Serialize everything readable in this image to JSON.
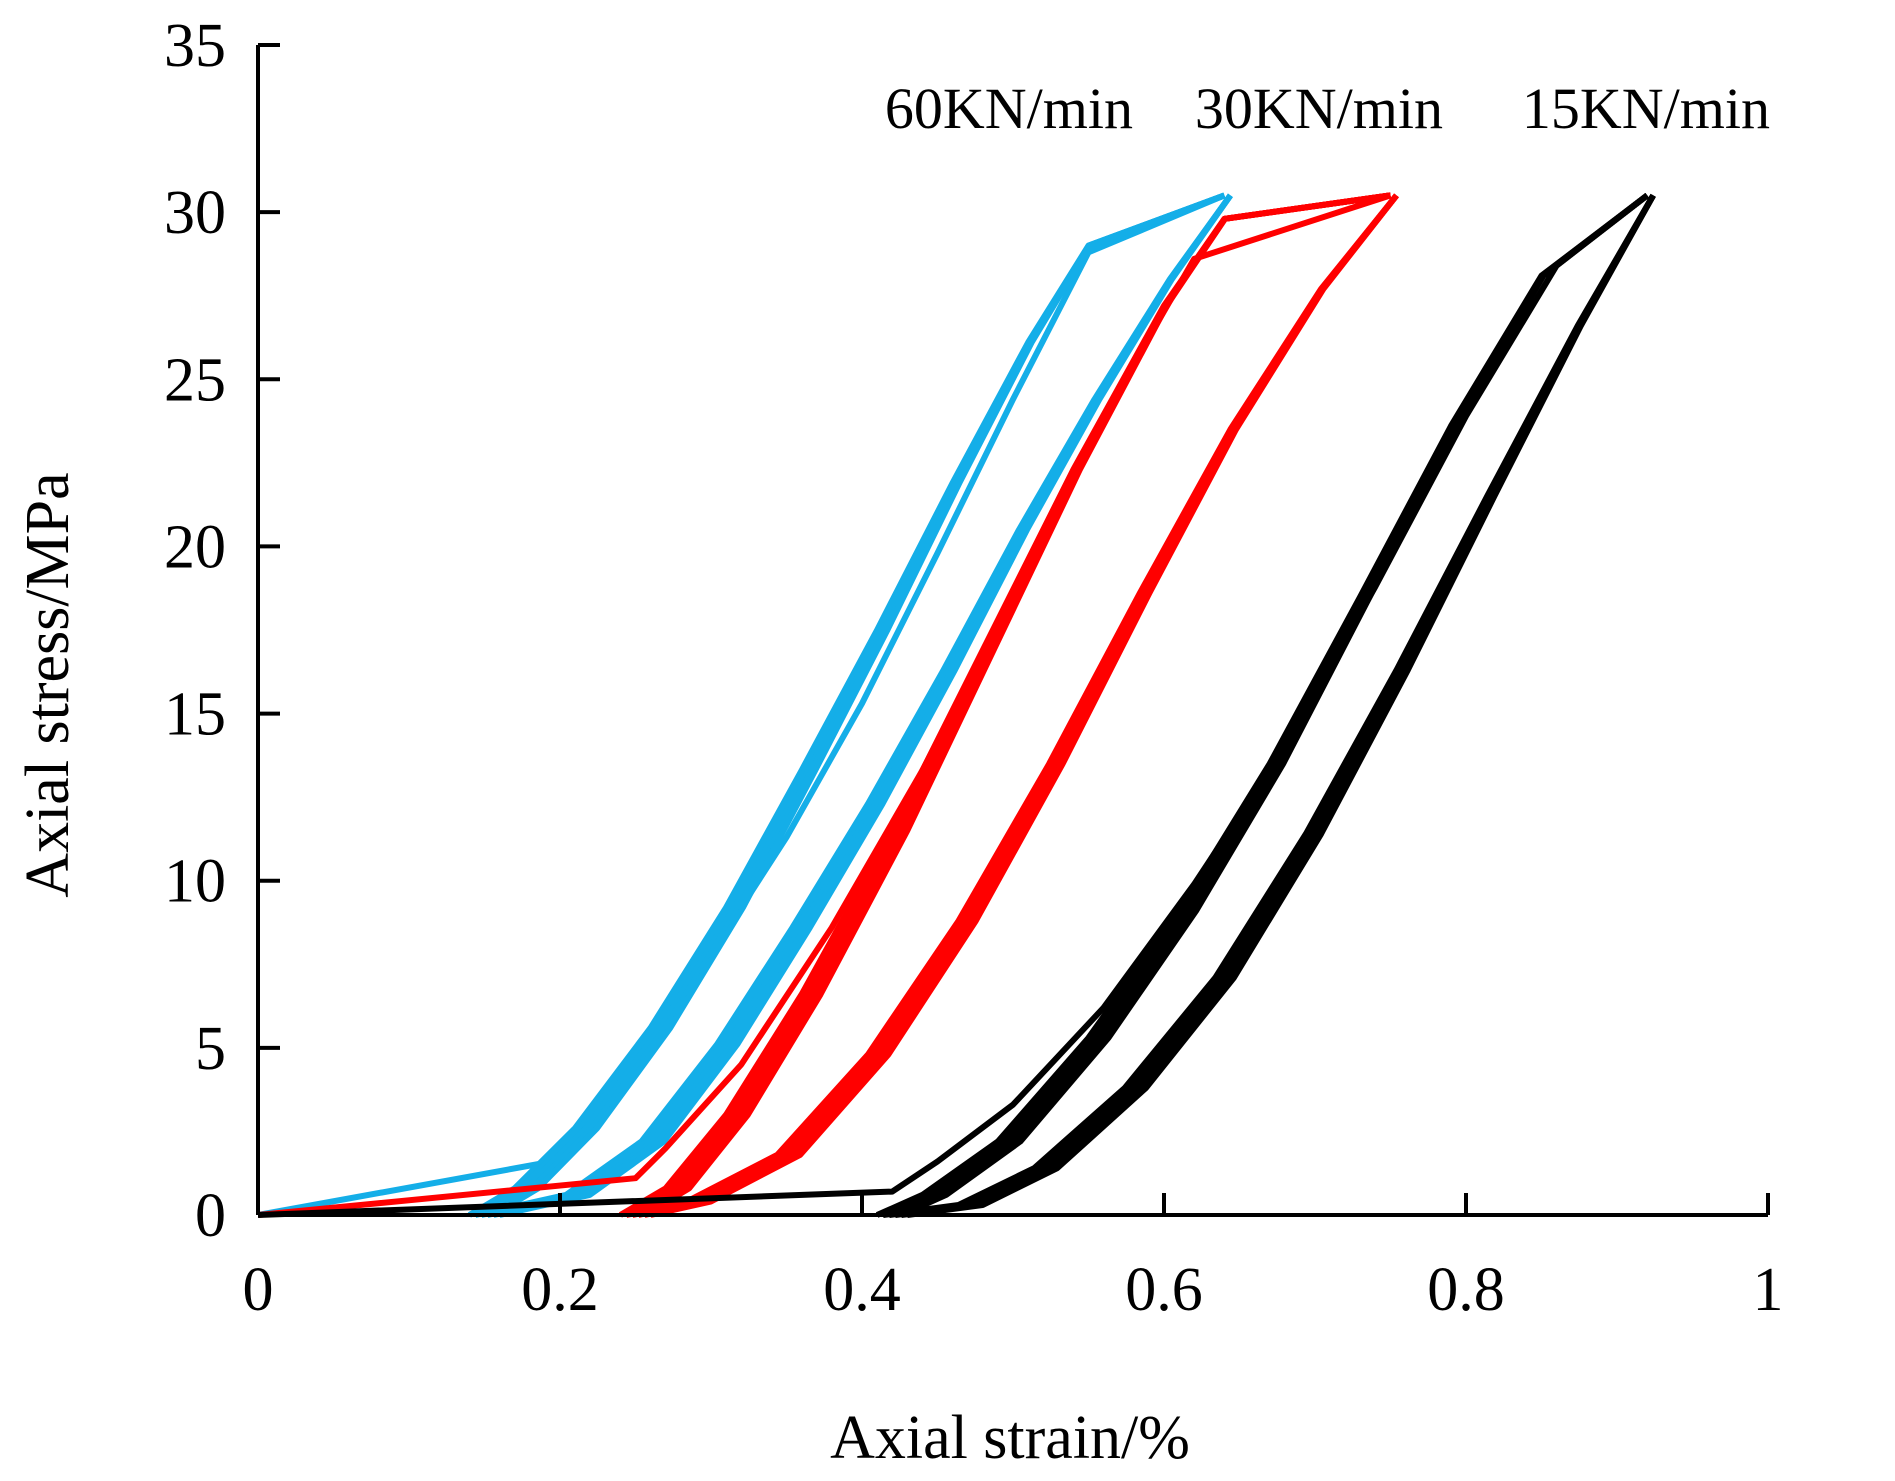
{
  "chart_data": {
    "type": "line",
    "title": "",
    "xlabel": "Axial strain/%",
    "ylabel": "Axial stress/MPa",
    "xlim": [
      0,
      1
    ],
    "ylim": [
      0,
      35
    ],
    "x_ticks": [
      0,
      0.2,
      0.4,
      0.6,
      0.8,
      1
    ],
    "x_tick_labels": [
      "0",
      "0.2",
      "0.4",
      "0.6",
      "0.8",
      "1"
    ],
    "y_ticks": [
      0,
      5,
      10,
      15,
      20,
      25,
      30,
      35
    ],
    "y_tick_labels": [
      "0",
      "5",
      "10",
      "15",
      "20",
      "25",
      "30",
      "35"
    ],
    "grid": false,
    "legend_placement": "top-right, labels above curve ends",
    "series": [
      {
        "name": "60KN/min",
        "color": "#14aee8",
        "initial_loading": [
          [
            0,
            0
          ],
          [
            0.195,
            1.6
          ],
          [
            0.21,
            2.5
          ],
          [
            0.26,
            5
          ],
          [
            0.3,
            7.8
          ],
          [
            0.35,
            11.3
          ],
          [
            0.4,
            15.3
          ],
          [
            0.45,
            19.8
          ],
          [
            0.5,
            24.4
          ],
          [
            0.55,
            28.8
          ],
          [
            0.64,
            30.5
          ]
        ],
        "cycles": [
          {
            "offset": 0.0,
            "up": [
              [
                0.14,
                0
              ],
              [
                0.17,
                0.8
              ],
              [
                0.21,
                2.6
              ],
              [
                0.26,
                5.6
              ],
              [
                0.31,
                9.2
              ],
              [
                0.36,
                13.3
              ],
              [
                0.41,
                17.5
              ],
              [
                0.46,
                21.9
              ],
              [
                0.51,
                26.1
              ],
              [
                0.55,
                29.0
              ],
              [
                0.64,
                30.5
              ]
            ],
            "down": [
              [
                0.64,
                30.5
              ],
              [
                0.6,
                28.0
              ],
              [
                0.55,
                24.4
              ],
              [
                0.5,
                20.5
              ],
              [
                0.45,
                16.3
              ],
              [
                0.4,
                12.3
              ],
              [
                0.35,
                8.6
              ],
              [
                0.3,
                5.1
              ],
              [
                0.25,
                2.2
              ],
              [
                0.2,
                0.6
              ],
              [
                0.14,
                0
              ]
            ]
          }
        ]
      },
      {
        "name": "30KN/min",
        "color": "#ff0000",
        "initial_loading": [
          [
            0,
            0
          ],
          [
            0.25,
            1.1
          ],
          [
            0.27,
            2.0
          ],
          [
            0.32,
            4.5
          ],
          [
            0.38,
            8.6
          ],
          [
            0.44,
            13.3
          ],
          [
            0.5,
            18.5
          ],
          [
            0.56,
            23.9
          ],
          [
            0.62,
            28.6
          ],
          [
            0.75,
            30.5
          ]
        ],
        "cycles": [
          {
            "offset": 0.0,
            "up": [
              [
                0.24,
                0
              ],
              [
                0.27,
                0.8
              ],
              [
                0.31,
                3.0
              ],
              [
                0.36,
                6.6
              ],
              [
                0.42,
                11.5
              ],
              [
                0.48,
                16.9
              ],
              [
                0.54,
                22.3
              ],
              [
                0.6,
                27.2
              ],
              [
                0.64,
                29.8
              ],
              [
                0.75,
                30.5
              ]
            ],
            "down": [
              [
                0.75,
                30.5
              ],
              [
                0.7,
                27.7
              ],
              [
                0.64,
                23.5
              ],
              [
                0.58,
                18.6
              ],
              [
                0.52,
                13.5
              ],
              [
                0.46,
                8.8
              ],
              [
                0.4,
                4.8
              ],
              [
                0.34,
                1.8
              ],
              [
                0.28,
                0.4
              ],
              [
                0.24,
                0
              ]
            ]
          }
        ]
      },
      {
        "name": "15KN/min",
        "color": "#000000",
        "initial_loading": [
          [
            0,
            0
          ],
          [
            0.42,
            0.7
          ],
          [
            0.45,
            1.6
          ],
          [
            0.5,
            3.3
          ],
          [
            0.56,
            6.2
          ],
          [
            0.62,
            9.9
          ],
          [
            0.68,
            14.0
          ],
          [
            0.74,
            18.8
          ],
          [
            0.8,
            23.9
          ],
          [
            0.86,
            28.4
          ],
          [
            0.92,
            30.5
          ]
        ],
        "cycles": [
          {
            "offset": 0.0,
            "up": [
              [
                0.41,
                0
              ],
              [
                0.44,
                0.6
              ],
              [
                0.49,
                2.2
              ],
              [
                0.55,
                5.3
              ],
              [
                0.61,
                9.1
              ],
              [
                0.67,
                13.5
              ],
              [
                0.73,
                18.5
              ],
              [
                0.79,
                23.6
              ],
              [
                0.85,
                28.1
              ],
              [
                0.92,
                30.5
              ]
            ],
            "down": [
              [
                0.92,
                30.5
              ],
              [
                0.87,
                26.6
              ],
              [
                0.81,
                21.5
              ],
              [
                0.75,
                16.3
              ],
              [
                0.69,
                11.4
              ],
              [
                0.63,
                7.1
              ],
              [
                0.57,
                3.8
              ],
              [
                0.51,
                1.4
              ],
              [
                0.46,
                0.3
              ],
              [
                0.41,
                0
              ]
            ]
          }
        ]
      }
    ]
  }
}
